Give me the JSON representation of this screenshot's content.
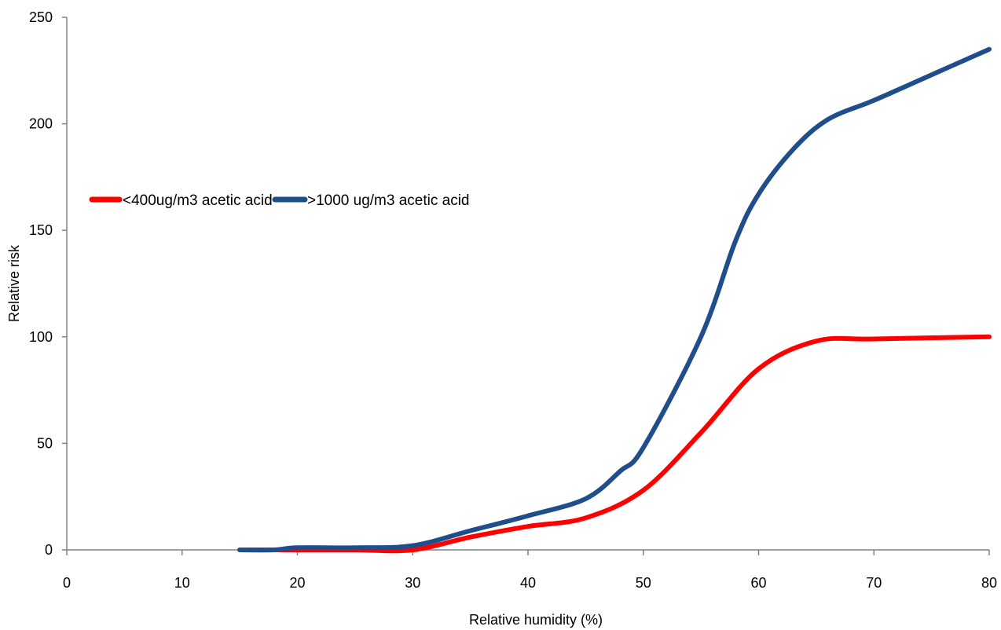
{
  "chart_data": {
    "type": "line",
    "title": "",
    "xlabel": "Relative humidity (%)",
    "ylabel": "Relative risk",
    "xlim": [
      0,
      80
    ],
    "ylim": [
      0,
      250
    ],
    "xticks": [
      0,
      10,
      20,
      30,
      40,
      50,
      60,
      70,
      80
    ],
    "yticks": [
      0,
      50,
      100,
      150,
      200,
      250
    ],
    "grid": false,
    "legend_position": "upper-left",
    "series": [
      {
        "name": "<400ug/m3 acetic acid",
        "color": "#ff0000",
        "x": [
          15,
          20,
          25,
          30,
          35,
          40,
          45,
          50,
          55,
          60,
          65,
          70,
          80
        ],
        "y": [
          0,
          0,
          0,
          0,
          6,
          11,
          15,
          28,
          55,
          85,
          98,
          99,
          100
        ]
      },
      {
        "name": ">1000 ug/m3 acetic acid",
        "color": "#1f4e8a",
        "x": [
          15,
          18,
          20,
          25,
          30,
          35,
          40,
          45,
          48,
          50,
          55,
          58,
          60,
          63,
          66,
          70,
          75,
          80
        ],
        "y": [
          0,
          0,
          1,
          1,
          2,
          9,
          16,
          24,
          37,
          48,
          100,
          145,
          167,
          188,
          202,
          211,
          223,
          235
        ]
      }
    ]
  }
}
